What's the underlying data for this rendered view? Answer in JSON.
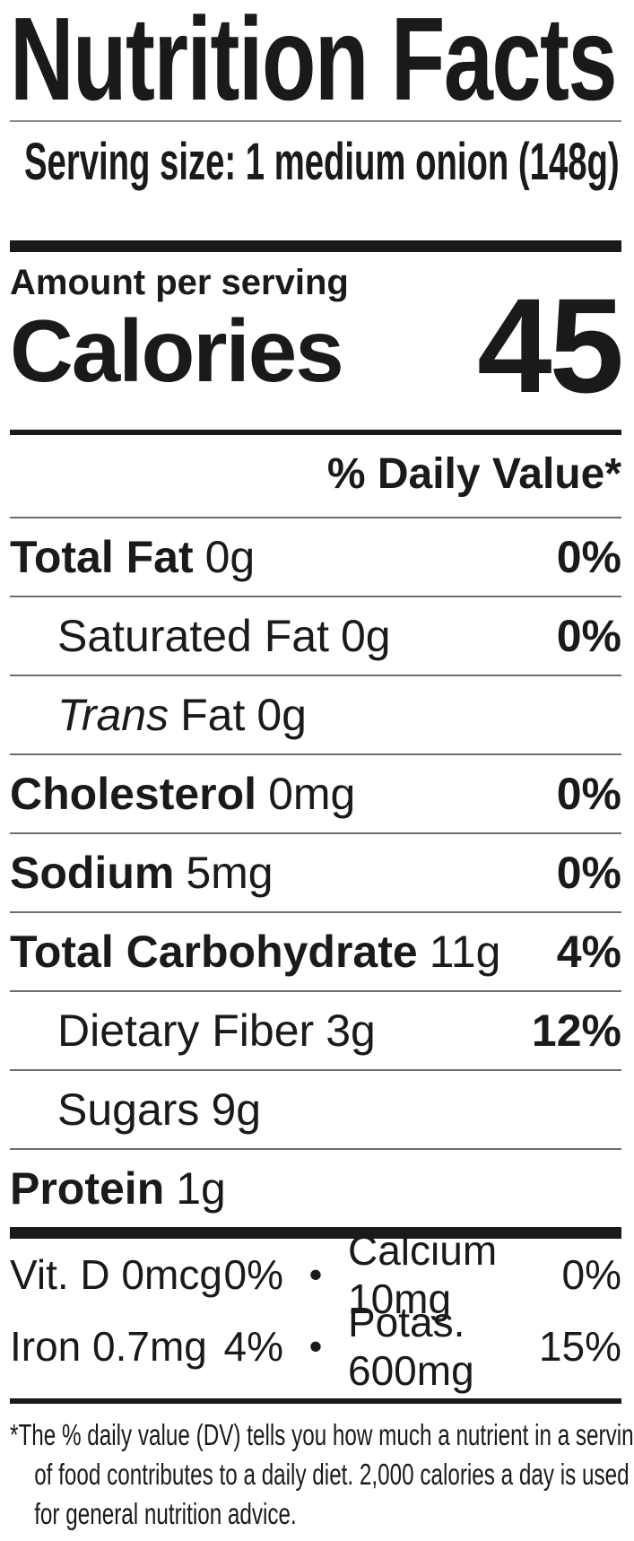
{
  "label": {
    "title": "Nutrition Facts",
    "serving_size": "Serving size: 1 medium onion (148g)",
    "amount_per_serving": "Amount per serving",
    "calories": {
      "label": "Calories",
      "value": "45"
    },
    "daily_value_header": "% Daily Value*",
    "nutrients": [
      {
        "name": "Total Fat",
        "amount": "0g",
        "dv": "0%"
      },
      {
        "name": "Saturated Fat",
        "amount": "0g",
        "dv": "0%"
      },
      {
        "name_italic": "Trans",
        "name": "Fat",
        "amount": "0g",
        "dv": ""
      },
      {
        "name": "Cholesterol",
        "amount": "0mg",
        "dv": "0%"
      },
      {
        "name": "Sodium",
        "amount": "5mg",
        "dv": "0%"
      },
      {
        "name": "Total Carbohydrate",
        "amount": "11g",
        "dv": "4%"
      },
      {
        "name": "Dietary Fiber",
        "amount": "3g",
        "dv": "12%"
      },
      {
        "name": "Sugars",
        "amount": "9g",
        "dv": ""
      },
      {
        "name": "Protein",
        "amount": "1g",
        "dv": ""
      }
    ],
    "micronutrients": {
      "bullet": "•",
      "rows": [
        {
          "left_name": "Vit. D 0mcg",
          "left_dv": "0%",
          "right_name": "Calcium 10mg",
          "right_dv": "0%"
        },
        {
          "left_name": "Iron 0.7mg",
          "left_dv": "4%",
          "right_name": "Potas. 600mg",
          "right_dv": "15%"
        }
      ]
    },
    "footnote": "*The % daily value (DV) tells you how much a nutrient in a serving of food contributes to a daily diet. 2,000 calories a day is used for general nutrition advice."
  },
  "colors": {
    "text": "#1a1a1a",
    "background": "#ffffff",
    "rule_gray": "#6e6e6e"
  }
}
